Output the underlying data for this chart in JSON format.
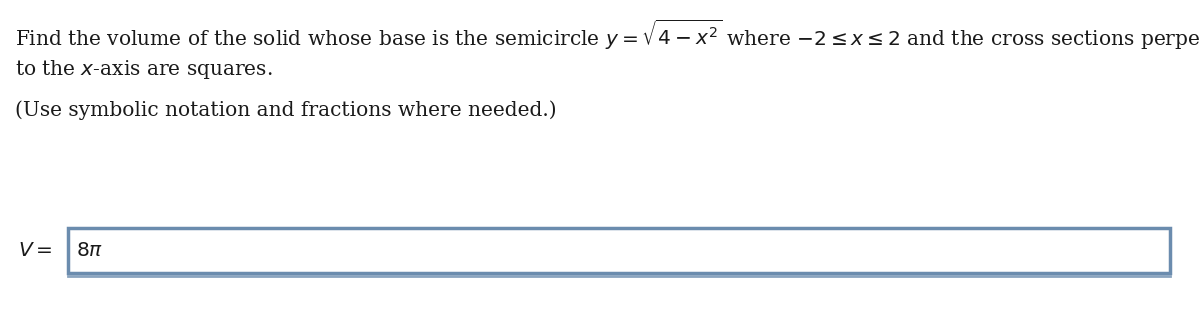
{
  "line1": "Find the volume of the solid whose base is the semicircle $y = \\sqrt{4 - x^2}$ where $-2 \\leq x \\leq 2$ and the cross sections perpendicular",
  "line2": "to the $x$-axis are squares.",
  "line3": "(Use symbolic notation and fractions where needed.)",
  "answer_label": "$V =$",
  "answer_value": "$8\\pi$",
  "bg_color": "#ffffff",
  "text_color": "#1a1a1a",
  "box_border_color": "#6b8cae",
  "box_border_color2": "#8aa4bf",
  "font_size_main": 14.5,
  "font_size_answer": 14.5,
  "fig_width": 12.0,
  "fig_height": 3.14,
  "dpi": 100
}
